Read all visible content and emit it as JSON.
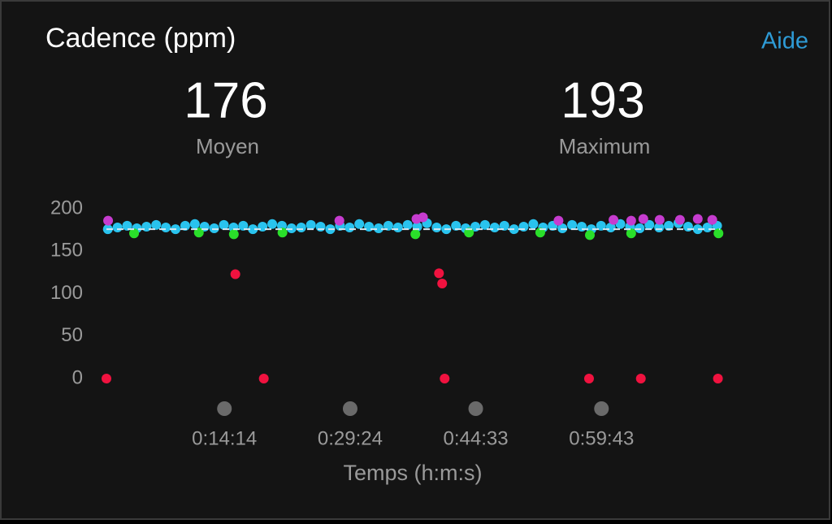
{
  "chart_data": {
    "type": "scatter",
    "title": "Cadence (ppm)",
    "help_link": "Aide",
    "stats": [
      {
        "value": 176,
        "label": "Moyen"
      },
      {
        "value": 193,
        "label": "Maximum"
      }
    ],
    "xlabel": "Temps (h:m:s)",
    "xlim": [
      0,
      4440
    ],
    "xticks": [
      {
        "value": 854,
        "label": "0:14:14"
      },
      {
        "value": 1764,
        "label": "0:29:24"
      },
      {
        "value": 2673,
        "label": "0:44:33"
      },
      {
        "value": 3583,
        "label": "0:59:43"
      }
    ],
    "ylim": [
      0,
      200
    ],
    "yticks": [
      0,
      50,
      100,
      150,
      200
    ],
    "average_line_color": "#d8e8f0",
    "series": [
      {
        "color": "#29c3ee",
        "x": [
          10,
          80,
          150,
          220,
          290,
          360,
          430,
          500,
          570,
          640,
          710,
          780,
          850,
          920,
          990,
          1060,
          1130,
          1200,
          1270,
          1340,
          1410,
          1480,
          1550,
          1620,
          1690,
          1760,
          1830,
          1900,
          1970,
          2040,
          2110,
          2180,
          2250,
          2320,
          2390,
          2460,
          2530,
          2600,
          2670,
          2740,
          2810,
          2880,
          2950,
          3020,
          3090,
          3160,
          3230,
          3300,
          3370,
          3440,
          3510,
          3580,
          3650,
          3720,
          3790,
          3860,
          3930,
          4000,
          4070,
          4140,
          4210,
          4280,
          4350,
          4420
        ],
        "values": [
          176,
          178,
          180,
          177,
          179,
          181,
          178,
          176,
          180,
          182,
          179,
          177,
          181,
          178,
          180,
          176,
          179,
          182,
          180,
          177,
          178,
          181,
          179,
          176,
          180,
          178,
          182,
          179,
          177,
          180,
          178,
          181,
          179,
          183,
          178,
          176,
          180,
          177,
          179,
          181,
          178,
          180,
          176,
          179,
          182,
          178,
          180,
          177,
          181,
          179,
          176,
          180,
          178,
          182,
          179,
          177,
          181,
          178,
          180,
          183,
          179,
          176,
          178,
          180
        ]
      },
      {
        "color": "#c63ccf",
        "x": [
          12,
          1686,
          2244,
          2291,
          3272,
          3670,
          3798,
          3886,
          4004,
          4151,
          4280,
          4385
        ],
        "values": [
          186,
          186,
          188,
          190,
          186,
          187,
          186,
          188,
          187,
          187,
          188,
          187
        ]
      },
      {
        "color": "#2adf2a",
        "x": [
          200,
          669,
          922,
          1274,
          2236,
          2624,
          3140,
          3499,
          3798,
          4430
        ],
        "values": [
          171,
          172,
          170,
          172,
          170,
          172,
          172,
          169,
          171,
          171
        ]
      },
      {
        "color": "#f0123f",
        "x": [
          0,
          933,
          1139,
          2407,
          2430,
          2448,
          3493,
          3868,
          4426
        ],
        "values": [
          0,
          123,
          0,
          124,
          112,
          0,
          0,
          0,
          0
        ]
      }
    ]
  }
}
